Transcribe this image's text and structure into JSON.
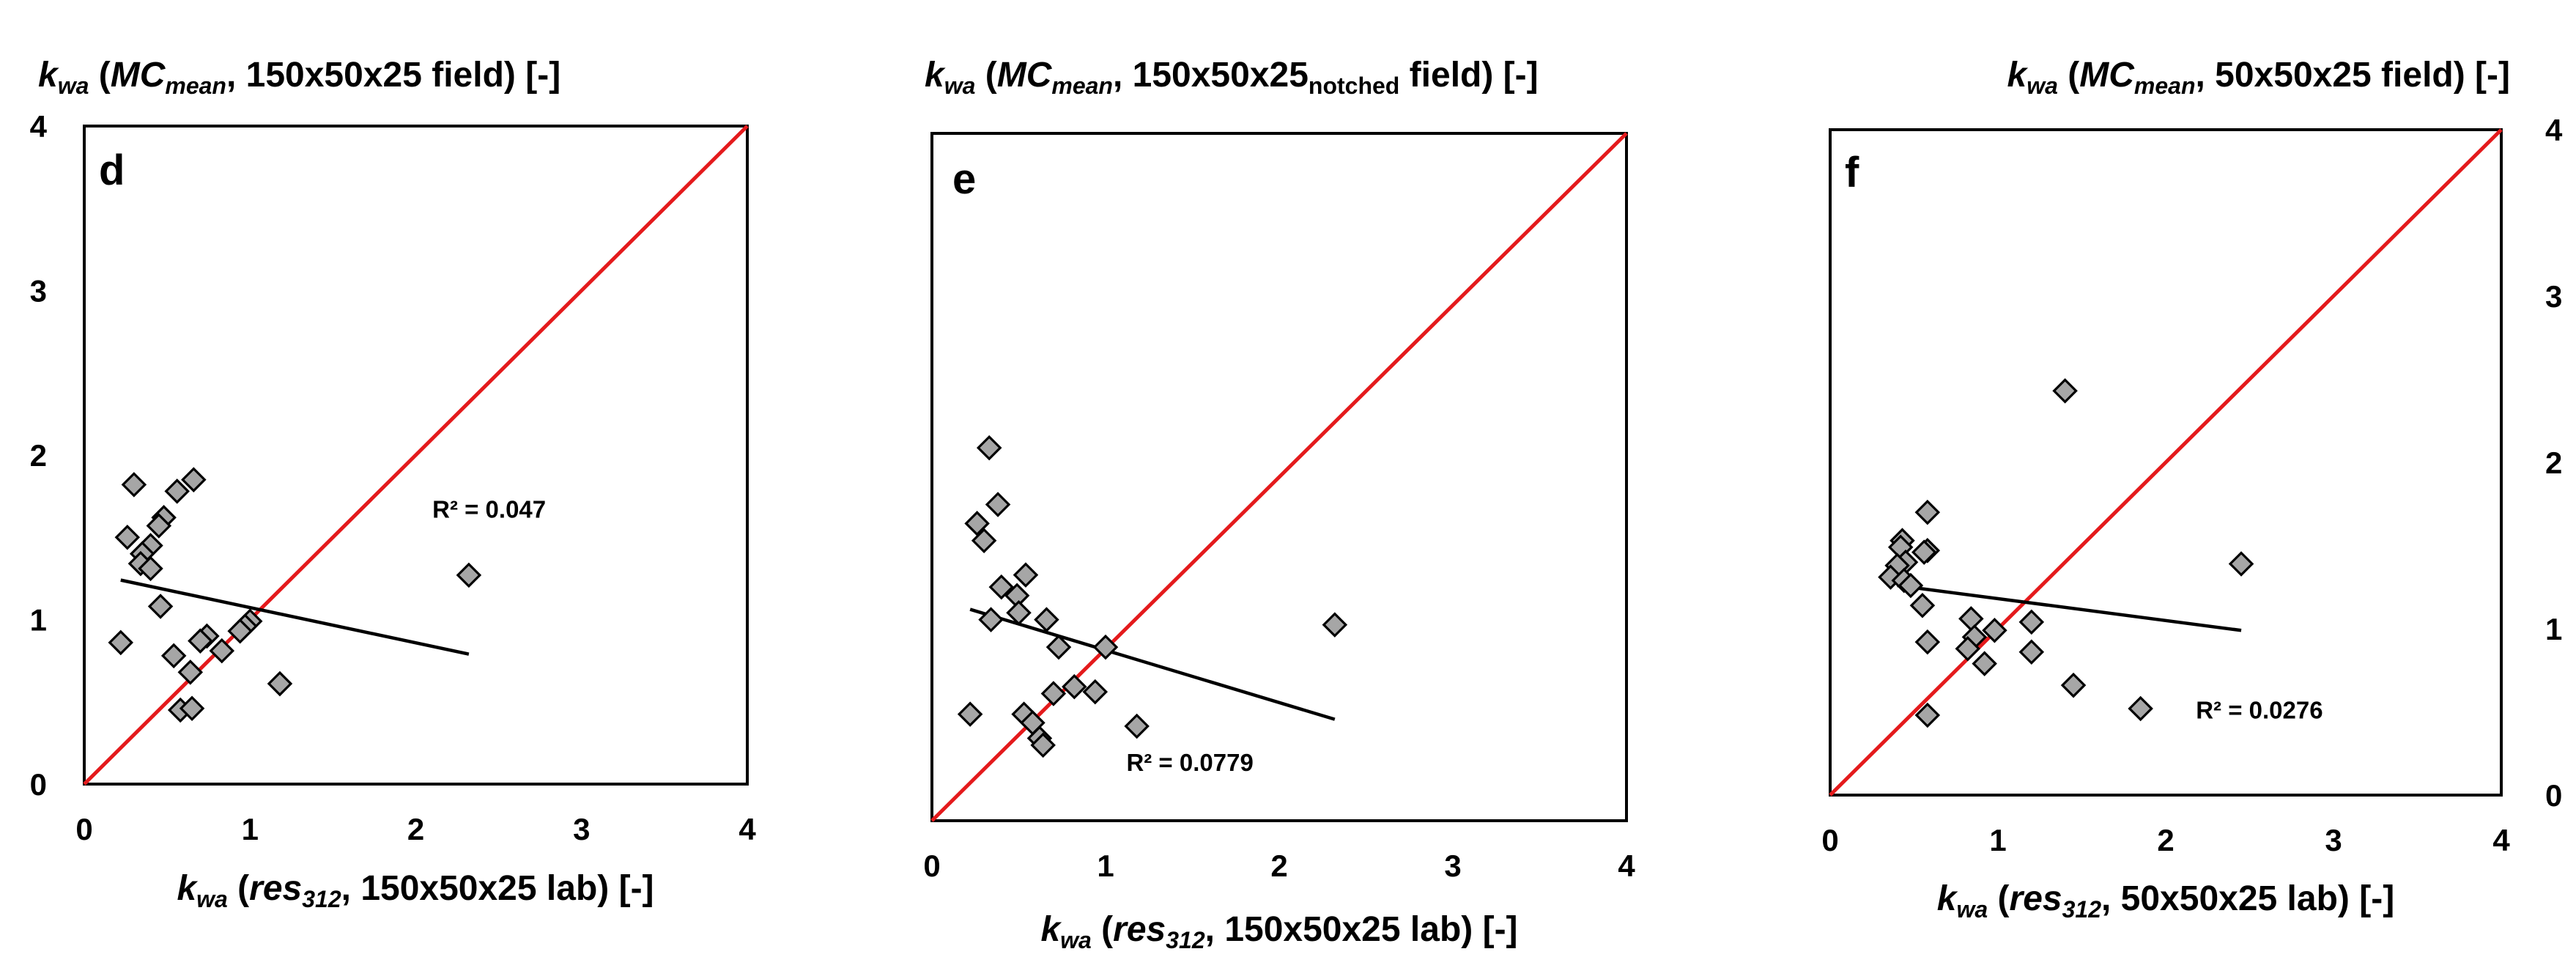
{
  "chart_data": [
    {
      "type": "scatter",
      "panel_label": "d",
      "xlabel": {
        "pre": "k",
        "pre_sub": "wa",
        "open": " (",
        "ital": "res",
        "ital_sub": "312",
        "rest": ", 150x50x25 lab) [-]"
      },
      "ylabel": {
        "pre": "k",
        "pre_sub": "wa",
        "open": " (",
        "ital": "MC",
        "ital_sub": "mean",
        "rest": ", 150x50x25 field) [-]"
      },
      "xlim": [
        0,
        4
      ],
      "ylim": [
        0,
        4
      ],
      "x_ticks": [
        "0",
        "1",
        "2",
        "3",
        "4"
      ],
      "y_ticks": [
        "0",
        "1",
        "2",
        "3",
        "4"
      ],
      "y_axis_side": "left",
      "reference_line": "y = x",
      "trendline": {
        "x": [
          0.22,
          2.32
        ],
        "y": [
          1.24,
          0.79
        ]
      },
      "r_squared_label": "R² = 0.047",
      "r_squared_pos": [
        2.1,
        1.62
      ],
      "points": [
        [
          0.3,
          1.82
        ],
        [
          0.66,
          1.85
        ],
        [
          0.56,
          1.78
        ],
        [
          0.48,
          1.62
        ],
        [
          0.45,
          1.57
        ],
        [
          0.26,
          1.5
        ],
        [
          0.4,
          1.45
        ],
        [
          0.35,
          1.4
        ],
        [
          0.34,
          1.34
        ],
        [
          0.4,
          1.31
        ],
        [
          0.46,
          1.08
        ],
        [
          1.0,
          0.99
        ],
        [
          0.97,
          0.96
        ],
        [
          0.94,
          0.93
        ],
        [
          0.74,
          0.9
        ],
        [
          0.7,
          0.87
        ],
        [
          0.22,
          0.86
        ],
        [
          0.83,
          0.81
        ],
        [
          0.54,
          0.78
        ],
        [
          0.64,
          0.68
        ],
        [
          1.18,
          0.61
        ],
        [
          0.58,
          0.45
        ],
        [
          0.65,
          0.46
        ],
        [
          2.32,
          1.27
        ]
      ]
    },
    {
      "type": "scatter",
      "panel_label": "e",
      "xlabel": {
        "pre": "k",
        "pre_sub": "wa",
        "open": " (",
        "ital": "res",
        "ital_sub": "312",
        "rest": ", 150x50x25 lab) [-]"
      },
      "ylabel": {
        "pre": "k",
        "pre_sub": "wa",
        "open": " (",
        "ital": "MC",
        "ital_sub": "mean",
        "mid": ", 150x50x25",
        "mid_sub": "notched",
        "rest": " field) [-]"
      },
      "xlim": [
        0,
        4
      ],
      "ylim": [
        0,
        4
      ],
      "x_ticks": [
        "0",
        "1",
        "2",
        "3",
        "4"
      ],
      "y_ticks": [],
      "y_axis_side": "none",
      "reference_line": "y = x",
      "trendline": {
        "x": [
          0.22,
          2.32
        ],
        "y": [
          1.23,
          0.59
        ]
      },
      "r_squared_label": "R² = 0.0779",
      "r_squared_pos": [
        1.12,
        0.29
      ],
      "points": [
        [
          0.33,
          2.17
        ],
        [
          0.38,
          1.84
        ],
        [
          0.26,
          1.73
        ],
        [
          0.3,
          1.63
        ],
        [
          0.54,
          1.43
        ],
        [
          0.4,
          1.36
        ],
        [
          0.49,
          1.31
        ],
        [
          0.5,
          1.21
        ],
        [
          0.34,
          1.17
        ],
        [
          0.66,
          1.17
        ],
        [
          1.0,
          1.01
        ],
        [
          0.73,
          1.01
        ],
        [
          0.94,
          0.75
        ],
        [
          0.82,
          0.78
        ],
        [
          0.7,
          0.74
        ],
        [
          0.53,
          0.62
        ],
        [
          0.58,
          0.57
        ],
        [
          0.62,
          0.48
        ],
        [
          0.64,
          0.44
        ],
        [
          0.22,
          0.62
        ],
        [
          1.18,
          0.55
        ],
        [
          2.32,
          1.14
        ]
      ]
    },
    {
      "type": "scatter",
      "panel_label": "f",
      "xlabel": {
        "pre": "k",
        "pre_sub": "wa",
        "open": " (",
        "ital": "res",
        "ital_sub": "312",
        "rest": ", 50x50x25 lab) [-]"
      },
      "ylabel": {
        "pre": "k",
        "pre_sub": "wa",
        "open": " (",
        "ital": "MC",
        "ital_sub": "mean",
        "rest": ", 50x50x25 field) [-]"
      },
      "xlim": [
        0,
        4
      ],
      "ylim": [
        0,
        4
      ],
      "x_ticks": [
        "0",
        "1",
        "2",
        "3",
        "4"
      ],
      "y_ticks": [
        "0",
        "1",
        "2",
        "3",
        "4"
      ],
      "y_axis_side": "right",
      "reference_line": "y = x",
      "trendline": {
        "x": [
          0.4,
          2.45
        ],
        "y": [
          1.26,
          0.99
        ]
      },
      "r_squared_label": "R² = 0.0276",
      "r_squared_pos": [
        2.18,
        0.46
      ],
      "points": [
        [
          1.4,
          2.43
        ],
        [
          0.58,
          1.7
        ],
        [
          0.43,
          1.53
        ],
        [
          0.42,
          1.49
        ],
        [
          0.58,
          1.47
        ],
        [
          0.56,
          1.46
        ],
        [
          0.45,
          1.4
        ],
        [
          0.4,
          1.38
        ],
        [
          0.36,
          1.31
        ],
        [
          0.44,
          1.29
        ],
        [
          0.48,
          1.26
        ],
        [
          2.45,
          1.39
        ],
        [
          0.55,
          1.14
        ],
        [
          0.84,
          1.06
        ],
        [
          1.2,
          1.04
        ],
        [
          0.98,
          0.99
        ],
        [
          0.86,
          0.95
        ],
        [
          0.58,
          0.92
        ],
        [
          0.82,
          0.88
        ],
        [
          1.2,
          0.86
        ],
        [
          0.92,
          0.79
        ],
        [
          1.45,
          0.66
        ],
        [
          1.85,
          0.52
        ],
        [
          0.58,
          0.48
        ]
      ]
    }
  ]
}
